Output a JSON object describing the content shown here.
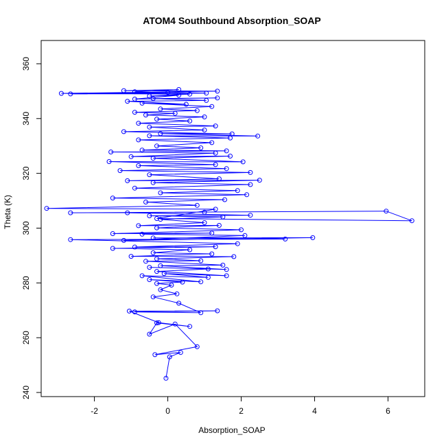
{
  "chart_data": {
    "type": "line",
    "title": "ATOM4 Southbound Absorption_SOAP",
    "xlabel": "Absorption_SOAP",
    "ylabel": "Theta (K)",
    "xlim": [
      -3.45,
      7.0
    ],
    "ylim": [
      238.5,
      368.5
    ],
    "xticks": [
      -2,
      0,
      2,
      4,
      6
    ],
    "yticks": [
      240,
      260,
      280,
      300,
      320,
      340,
      360
    ],
    "grid": false,
    "legend": "none",
    "color": "#0000ff",
    "series": [
      {
        "markers": "open-circle",
        "points": [
          [
            -0.05,
            245.2
          ],
          [
            0.05,
            253.0
          ],
          [
            0.35,
            254.6
          ],
          [
            -0.35,
            253.8
          ],
          [
            0.8,
            256.7
          ],
          [
            0.2,
            265.0
          ],
          [
            -0.5,
            261.3
          ],
          [
            -0.3,
            265.4
          ],
          [
            0.6,
            264.1
          ],
          [
            -0.25,
            265.5
          ],
          [
            -1.05,
            269.7
          ],
          [
            1.35,
            269.8
          ],
          [
            -0.9,
            269.4
          ],
          [
            0.9,
            269.1
          ],
          [
            0.3,
            272.6
          ],
          [
            -0.4,
            274.9
          ],
          [
            0.25,
            276.0
          ],
          [
            -0.2,
            277.5
          ],
          [
            0.1,
            279.2
          ],
          [
            -0.3,
            279.8
          ],
          [
            0.4,
            280.3
          ],
          [
            -0.5,
            281.2
          ],
          [
            0.9,
            280.4
          ],
          [
            -0.7,
            282.6
          ],
          [
            1.1,
            282.0
          ],
          [
            -0.1,
            283.4
          ],
          [
            1.6,
            282.6
          ],
          [
            -0.3,
            284.2
          ],
          [
            1.1,
            285.1
          ],
          [
            -0.5,
            285.7
          ],
          [
            1.6,
            284.9
          ],
          [
            -0.2,
            286.3
          ],
          [
            1.5,
            286.5
          ],
          [
            -0.6,
            287.9
          ],
          [
            0.9,
            288.1
          ],
          [
            -0.3,
            288.8
          ],
          [
            1.8,
            289.6
          ],
          [
            -1.0,
            289.7
          ],
          [
            1.2,
            290.6
          ],
          [
            -0.4,
            291.0
          ],
          [
            0.6,
            292.1
          ],
          [
            -1.5,
            292.6
          ],
          [
            1.3,
            293.2
          ],
          [
            -0.9,
            293.1
          ],
          [
            1.9,
            294.3
          ],
          [
            -2.65,
            295.8
          ],
          [
            3.2,
            296.0
          ],
          [
            -0.4,
            296.4
          ],
          [
            3.95,
            296.5
          ],
          [
            -1.2,
            295.5
          ],
          [
            2.1,
            297.3
          ],
          [
            -0.7,
            297.8
          ],
          [
            1.2,
            298.2
          ],
          [
            -1.5,
            298.0
          ],
          [
            2.0,
            299.4
          ],
          [
            -0.3,
            300.1
          ],
          [
            1.4,
            301.0
          ],
          [
            -0.8,
            300.9
          ],
          [
            1.0,
            302.0
          ],
          [
            -0.2,
            303.2
          ],
          [
            1.5,
            304.1
          ],
          [
            -0.5,
            304.5
          ],
          [
            2.25,
            304.7
          ],
          [
            -1.1,
            305.6
          ],
          [
            1.0,
            305.8
          ],
          [
            -2.65,
            305.6
          ],
          [
            5.95,
            306.2
          ],
          [
            6.65,
            302.7
          ],
          [
            -0.3,
            303.5
          ],
          [
            1.3,
            306.9
          ],
          [
            -3.3,
            307.2
          ],
          [
            0.8,
            308.3
          ],
          [
            -0.6,
            309.5
          ],
          [
            1.55,
            310.4
          ],
          [
            -1.5,
            311.0
          ],
          [
            2.15,
            312.2
          ],
          [
            -0.2,
            312.9
          ],
          [
            1.9,
            313.7
          ],
          [
            -0.9,
            314.6
          ],
          [
            2.25,
            315.9
          ],
          [
            -0.4,
            316.6
          ],
          [
            2.5,
            317.5
          ],
          [
            -1.1,
            317.3
          ],
          [
            1.4,
            318.0
          ],
          [
            -0.5,
            319.5
          ],
          [
            2.25,
            320.3
          ],
          [
            -1.3,
            321.0
          ],
          [
            1.6,
            321.7
          ],
          [
            -0.8,
            322.8
          ],
          [
            1.3,
            323.2
          ],
          [
            -1.6,
            324.3
          ],
          [
            2.05,
            324.2
          ],
          [
            -0.4,
            325.5
          ],
          [
            1.7,
            326.3
          ],
          [
            -1.0,
            326.1
          ],
          [
            1.3,
            327.4
          ],
          [
            -1.55,
            327.8
          ],
          [
            1.6,
            328.2
          ],
          [
            -0.7,
            328.5
          ],
          [
            0.9,
            329.3
          ],
          [
            -0.3,
            330.0
          ],
          [
            1.2,
            331.2
          ],
          [
            -0.8,
            332.2
          ],
          [
            1.7,
            332.9
          ],
          [
            -0.5,
            333.7
          ],
          [
            2.45,
            333.6
          ],
          [
            -0.2,
            334.5
          ],
          [
            1.75,
            334.4
          ],
          [
            -1.2,
            335.2
          ],
          [
            1.0,
            335.8
          ],
          [
            -0.5,
            336.9
          ],
          [
            1.3,
            337.3
          ],
          [
            -0.8,
            338.3
          ],
          [
            0.6,
            339.1
          ],
          [
            -0.3,
            339.8
          ],
          [
            1.0,
            340.6
          ],
          [
            -0.6,
            341.3
          ],
          [
            0.2,
            341.9
          ],
          [
            -0.9,
            342.3
          ],
          [
            0.8,
            342.9
          ],
          [
            -0.2,
            343.5
          ],
          [
            1.2,
            344.4
          ],
          [
            -0.7,
            345.6
          ],
          [
            0.5,
            345.2
          ],
          [
            -1.1,
            346.3
          ],
          [
            1.05,
            346.6
          ],
          [
            -0.4,
            347.3
          ],
          [
            1.35,
            347.5
          ],
          [
            -0.9,
            347.1
          ],
          [
            0.3,
            348.5
          ],
          [
            -0.5,
            348.2
          ],
          [
            0.6,
            348.9
          ],
          [
            -2.9,
            349.2
          ],
          [
            1.35,
            350.0
          ],
          [
            -1.2,
            350.2
          ],
          [
            0.3,
            350.6
          ],
          [
            -0.9,
            349.8
          ],
          [
            1.05,
            349.3
          ],
          [
            -2.65,
            349.0
          ],
          [
            0.0,
            349.5
          ]
        ]
      }
    ]
  }
}
